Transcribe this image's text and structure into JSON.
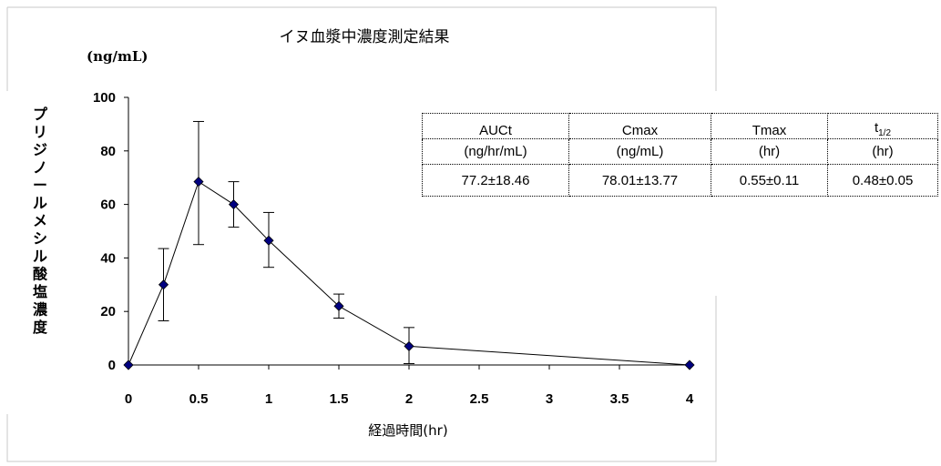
{
  "chart_data": {
    "type": "line",
    "title": "イヌ血漿中濃度測定結果",
    "unit_label": "(ng/mL)",
    "xlabel": "経過時間(hr)",
    "ylabel": "プリジノールメシル酸塩濃度",
    "xlim": [
      0,
      4
    ],
    "ylim": [
      0,
      100
    ],
    "x_ticks": [
      "0",
      "0.5",
      "1",
      "1.5",
      "2",
      "2.5",
      "3",
      "3.5",
      "4"
    ],
    "y_ticks": [
      "0",
      "20",
      "40",
      "60",
      "80",
      "100"
    ],
    "grid": false,
    "series": [
      {
        "x": [
          0,
          0.25,
          0.5,
          0.75,
          1,
          1.5,
          2,
          4
        ],
        "y": [
          0,
          30,
          68.5,
          60,
          46.5,
          22,
          7,
          0
        ],
        "err_low": [
          0,
          16.5,
          45,
          51.5,
          36.5,
          17.5,
          0.5,
          0
        ],
        "err_high": [
          0,
          43.5,
          91,
          68.5,
          57,
          26.5,
          14,
          0
        ],
        "color": "#000080"
      }
    ]
  },
  "table": {
    "headers": [
      {
        "line1": "AUCt",
        "line2": "(ng/hr/mL)"
      },
      {
        "line1": "Cmax",
        "line2": "(ng/mL)"
      },
      {
        "line1": "Tmax",
        "line2": "(hr)"
      },
      {
        "line1": "t",
        "sub": "1/2",
        "line2": "(hr)"
      }
    ],
    "values": [
      "77.2±18.46",
      "78.01±13.77",
      "0.55±0.11",
      "0.48±0.05"
    ]
  }
}
